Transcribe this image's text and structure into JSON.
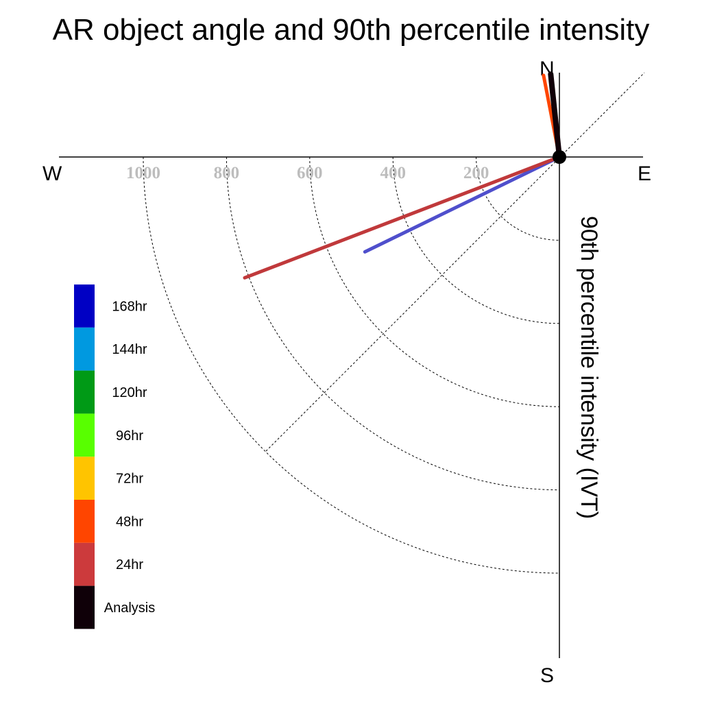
{
  "chart_data": {
    "type": "polar-vector",
    "title": "AR object angle and 90th percentile intensity",
    "ylabel": "90th percentile intensity (IVT)",
    "compass": {
      "north": "N",
      "south": "S",
      "east": "E",
      "west": "W"
    },
    "radial_ticks": [
      "1000",
      "800",
      "600",
      "400",
      "200"
    ],
    "radial_tick_values": [
      1000,
      800,
      600,
      400,
      200
    ],
    "rmax": 1200,
    "vectors": [
      {
        "name": "168hr",
        "color": "#4f4fcc",
        "direction_deg": 244,
        "magnitude": 520
      },
      {
        "name": "24hr",
        "color": "#c0393b",
        "direction_deg": 249,
        "magnitude": 810
      },
      {
        "name": "48hr",
        "color": "#ff4500",
        "direction_deg": 349,
        "magnitude": 200
      },
      {
        "name": "Analysis",
        "color": "#110008",
        "direction_deg": 354,
        "magnitude": 200
      }
    ],
    "legend": [
      {
        "label": "168hr",
        "color": "#0000c4"
      },
      {
        "label": "144hr",
        "color": "#0099e0"
      },
      {
        "label": "120hr",
        "color": "#009a16"
      },
      {
        "label": "96hr",
        "color": "#58ff00"
      },
      {
        "label": "72hr",
        "color": "#ffc400"
      },
      {
        "label": "48hr",
        "color": "#ff4500"
      },
      {
        "label": "24hr",
        "color": "#cc3a3c"
      },
      {
        "label": "Analysis",
        "color": "#0f0008"
      }
    ]
  }
}
